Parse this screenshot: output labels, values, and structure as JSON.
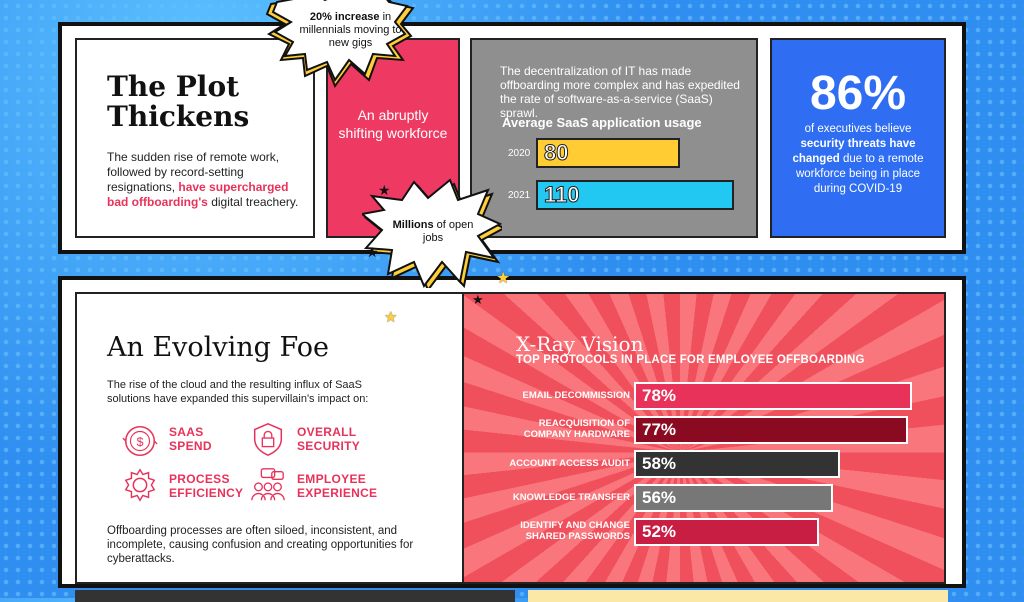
{
  "plot": {
    "title_line1": "The Plot",
    "title_line2": "Thickens",
    "body_start": "The sudden rise of remote work, followed by record-setting resignations, ",
    "body_highlight": "have supercharged bad offboarding's",
    "body_end": " digital treachery."
  },
  "burst_top": {
    "bold": "20% increase",
    "rest": " in millennials moving to new gigs"
  },
  "shift": {
    "text": "An abruptly shifting workforce"
  },
  "burst_mid": {
    "bold": "Millions",
    "rest": " of open jobs"
  },
  "saas": {
    "desc": "The decentralization of IT has made offboarding more complex and has expedited the rate of software-as-a-service (SaaS) sprawl.",
    "title": "Average SaaS application usage"
  },
  "exec": {
    "stat": "86%",
    "text_start": "of executives believe ",
    "text_bold": "security threats have changed",
    "text_end": " due to a remote workforce being in place during COVID-19"
  },
  "foe": {
    "title": "An Evolving Foe",
    "intro": "The rise of the cloud and the resulting influx of SaaS solutions have expanded this supervillain's impact on:",
    "impacts": [
      {
        "line1": "SAAS",
        "line2": "SPEND",
        "icon": "dollar-coin-icon"
      },
      {
        "line1": "OVERALL",
        "line2": "SECURITY",
        "icon": "shield-lock-icon"
      },
      {
        "line1": "PROCESS",
        "line2": "EFFICIENCY",
        "icon": "gear-icon"
      },
      {
        "line1": "EMPLOYEE",
        "line2": "EXPERIENCE",
        "icon": "people-chat-icon"
      }
    ],
    "outro": "Offboarding processes are often siloed, inconsistent, and incomplete, causing confusion and creating opportunities for cyberattacks."
  },
  "xray": {
    "title": "X-Ray Vision",
    "subtitle": "TOP PROTOCOLS IN PLACE FOR EMPLOYEE OFFBOARDING"
  },
  "chart_data": [
    {
      "type": "bar",
      "title": "Average SaaS application usage",
      "categories": [
        "2020",
        "2021"
      ],
      "values": [
        80,
        110
      ],
      "value_labels": [
        "80",
        "110"
      ],
      "colors": [
        "#ffcc33",
        "#22c7f2"
      ],
      "xlim": [
        0,
        150
      ]
    },
    {
      "type": "bar",
      "title": "X-Ray Vision",
      "subtitle": "TOP PROTOCOLS IN PLACE FOR EMPLOYEE OFFBOARDING",
      "categories": [
        [
          "EMAIL DECOMMISSION"
        ],
        [
          "REACQUISITION OF",
          "COMPANY HARDWARE"
        ],
        [
          "ACCOUNT ACCESS AUDIT"
        ],
        [
          "KNOWLEDGE TRANSFER"
        ],
        [
          "IDENTIFY AND CHANGE",
          "SHARED PASSWORDS"
        ]
      ],
      "values": [
        78,
        77,
        58,
        56,
        52
      ],
      "value_labels": [
        "78%",
        "77%",
        "58%",
        "56%",
        "52%"
      ],
      "colors": [
        "#e8325a",
        "#8a0a22",
        "#333333",
        "#777777",
        "#c81e44"
      ],
      "xlim": [
        0,
        100
      ]
    }
  ]
}
